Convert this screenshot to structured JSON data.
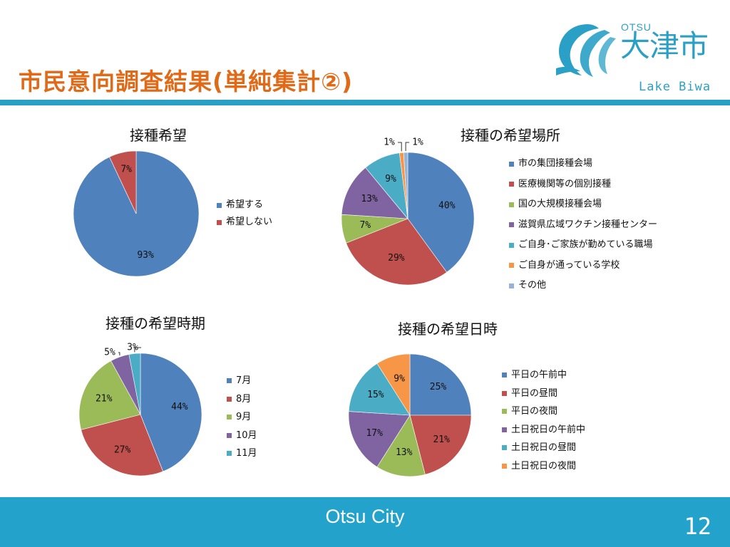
{
  "header": {
    "title": "市民意向調査結果(単純集計②)"
  },
  "logo": {
    "otsu": "OTSU",
    "kanji": "大津市",
    "lake": "Lake Biwa"
  },
  "footer": {
    "city": "Otsu City",
    "page": "12"
  },
  "colors": {
    "accent": "#2aa0c6",
    "title": "#e06a17",
    "footer": "#23a3cc"
  },
  "chart_data": [
    {
      "type": "pie",
      "title": "接種希望",
      "categories": [
        "希望する",
        "希望しない"
      ],
      "values": [
        93,
        7
      ],
      "labels": [
        "93%",
        "7%"
      ],
      "colors": [
        "#4f81bd",
        "#c0504d"
      ],
      "legend": "right"
    },
    {
      "type": "pie",
      "title": "接種の希望場所",
      "categories": [
        "市の集団接種会場",
        "医療機関等の個別接種",
        "国の大規模接種会場",
        "滋賀県広域ワクチン接種センター",
        "ご自身･ご家族が勤めている職場",
        "ご自身が通っている学校",
        "その他"
      ],
      "values": [
        40,
        29,
        7,
        13,
        9,
        1,
        1
      ],
      "labels": [
        "40%",
        "29%",
        "7%",
        "13%",
        "9%",
        "1%",
        "1%"
      ],
      "colors": [
        "#4f81bd",
        "#c0504d",
        "#9bbb59",
        "#8064a2",
        "#4bacc6",
        "#f79646",
        "#95b3d7"
      ],
      "legend": "right"
    },
    {
      "type": "pie",
      "title": "接種の希望時期",
      "categories": [
        "7月",
        "8月",
        "9月",
        "10月",
        "11月"
      ],
      "values": [
        44,
        27,
        21,
        5,
        3
      ],
      "labels": [
        "44%",
        "27%",
        "21%",
        "5%",
        "3%"
      ],
      "colors": [
        "#4f81bd",
        "#c0504d",
        "#9bbb59",
        "#8064a2",
        "#4bacc6"
      ],
      "legend": "right"
    },
    {
      "type": "pie",
      "title": "接種の希望日時",
      "categories": [
        "平日の午前中",
        "平日の昼間",
        "平日の夜間",
        "土日祝日の午前中",
        "土日祝日の昼間",
        "土日祝日の夜間"
      ],
      "values": [
        25,
        21,
        13,
        17,
        15,
        9
      ],
      "labels": [
        "25%",
        "21%",
        "13%",
        "17%",
        "15%",
        "9%"
      ],
      "colors": [
        "#4f81bd",
        "#c0504d",
        "#9bbb59",
        "#8064a2",
        "#4bacc6",
        "#f79646"
      ],
      "legend": "right"
    }
  ]
}
